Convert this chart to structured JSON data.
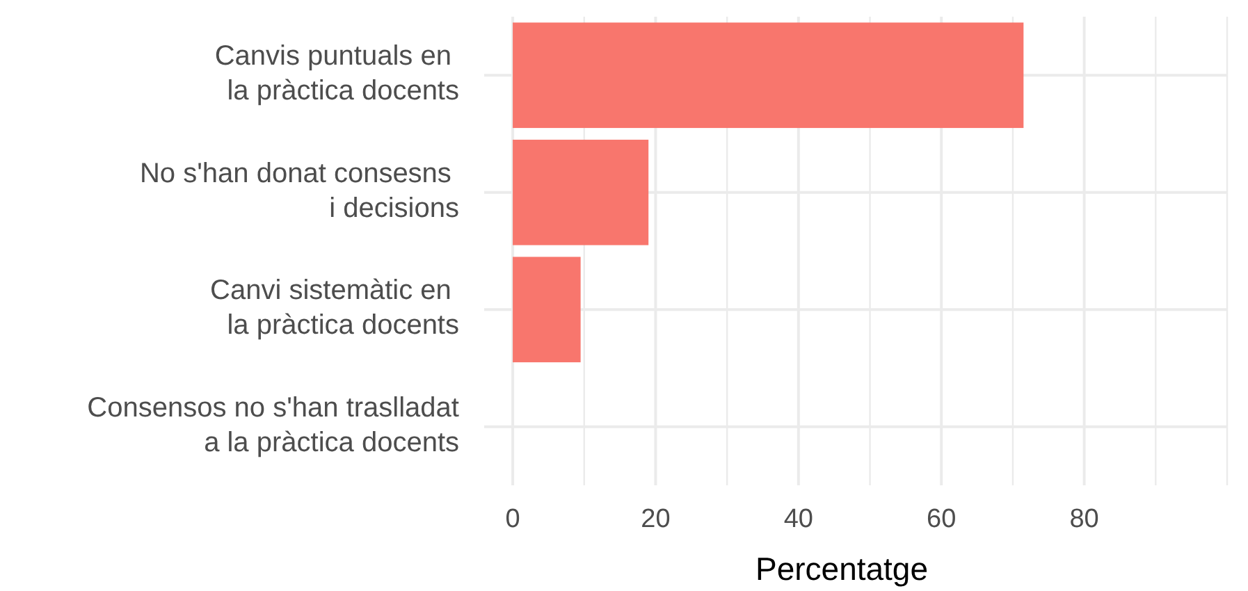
{
  "chart_data": {
    "type": "bar",
    "orientation": "horizontal",
    "xlabel": "Percentatge",
    "categories": [
      "Canvis puntuals en \nla pràctica docents",
      "No s'han donat consesns \ni decisions",
      "Canvi sistemàtic en \nla pràctica docents",
      "Consensos no s'han traslladat\na la pràctica docents"
    ],
    "values": [
      71.5,
      19,
      9.5,
      0
    ],
    "color": "#f8766d",
    "xlim": [
      -4,
      100
    ],
    "xticks": [
      0,
      {
        "value": 10,
        "label": null
      },
      20,
      {
        "value": 30,
        "label": null
      },
      40,
      {
        "value": 50,
        "label": null
      },
      60,
      {
        "value": 70,
        "label": null
      },
      80,
      {
        "value": 90,
        "label": null
      },
      {
        "value": 100,
        "label": null
      }
    ],
    "grid": true
  }
}
